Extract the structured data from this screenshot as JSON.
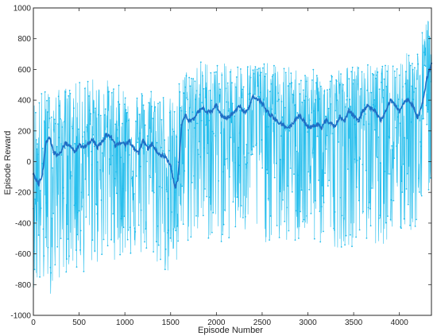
{
  "chart_data": {
    "type": "line",
    "xlabel": "Episode Number",
    "ylabel": "Episode Reward",
    "xlim": [
      0,
      4350
    ],
    "ylim": [
      -1000,
      1000
    ],
    "xticks": [
      "0",
      "500",
      "1000",
      "1500",
      "2000",
      "2500",
      "3000",
      "3500",
      "4000"
    ],
    "yticks": [
      "-1000",
      "-800",
      "-600",
      "-400",
      "-200",
      "0",
      "200",
      "400",
      "600",
      "800",
      "1000"
    ],
    "grid": false,
    "series": [
      {
        "style": "raw",
        "color": "#1ebcec",
        "envelope": {
          "x": [
            0,
            100,
            200,
            300,
            400,
            500,
            600,
            700,
            800,
            900,
            1000,
            1100,
            1200,
            1300,
            1400,
            1500,
            1550,
            1600,
            1700,
            1800,
            1900,
            2000,
            2200,
            2400,
            2600,
            2800,
            3000,
            3200,
            3400,
            3600,
            3800,
            4000,
            4100,
            4200,
            4300,
            4350
          ],
          "upper": [
            420,
            480,
            450,
            480,
            500,
            520,
            560,
            540,
            540,
            500,
            500,
            480,
            470,
            500,
            480,
            420,
            360,
            560,
            620,
            660,
            660,
            640,
            640,
            650,
            640,
            620,
            600,
            600,
            620,
            640,
            620,
            680,
            720,
            760,
            960,
            900
          ],
          "lower": [
            -820,
            -880,
            -860,
            -760,
            -700,
            -760,
            -700,
            -680,
            -640,
            -640,
            -620,
            -620,
            -640,
            -660,
            -700,
            -780,
            -800,
            -560,
            -540,
            -520,
            -520,
            -540,
            -520,
            -520,
            -540,
            -560,
            -540,
            -560,
            -560,
            -540,
            -540,
            -520,
            -480,
            -440,
            -300,
            -200
          ]
        }
      },
      {
        "style": "moving-average",
        "color": "#1f6fc5",
        "x": [
          0,
          30,
          60,
          100,
          140,
          180,
          220,
          260,
          300,
          350,
          400,
          450,
          500,
          550,
          600,
          650,
          700,
          750,
          800,
          850,
          900,
          950,
          1000,
          1050,
          1100,
          1150,
          1200,
          1250,
          1300,
          1350,
          1400,
          1450,
          1500,
          1550,
          1580,
          1620,
          1660,
          1700,
          1750,
          1800,
          1850,
          1900,
          1950,
          2000,
          2050,
          2100,
          2150,
          2200,
          2250,
          2300,
          2350,
          2400,
          2450,
          2500,
          2550,
          2600,
          2650,
          2700,
          2750,
          2800,
          2850,
          2900,
          2950,
          3000,
          3050,
          3100,
          3150,
          3200,
          3250,
          3300,
          3350,
          3400,
          3450,
          3500,
          3550,
          3600,
          3650,
          3700,
          3750,
          3800,
          3850,
          3900,
          3950,
          4000,
          4050,
          4100,
          4150,
          4200,
          4250,
          4300,
          4350
        ],
        "y": [
          -80,
          -120,
          -150,
          -80,
          130,
          150,
          60,
          40,
          60,
          120,
          100,
          60,
          110,
          90,
          120,
          140,
          90,
          130,
          180,
          160,
          100,
          120,
          110,
          130,
          80,
          50,
          140,
          80,
          120,
          60,
          40,
          30,
          -30,
          -170,
          -110,
          240,
          300,
          270,
          280,
          320,
          350,
          320,
          330,
          370,
          300,
          280,
          300,
          330,
          360,
          320,
          350,
          420,
          400,
          380,
          330,
          300,
          270,
          250,
          230,
          220,
          260,
          300,
          270,
          220,
          230,
          240,
          220,
          270,
          250,
          230,
          300,
          260,
          340,
          300,
          260,
          330,
          360,
          350,
          310,
          270,
          330,
          400,
          370,
          320,
          380,
          400,
          360,
          290,
          380,
          540,
          640
        ]
      }
    ]
  }
}
